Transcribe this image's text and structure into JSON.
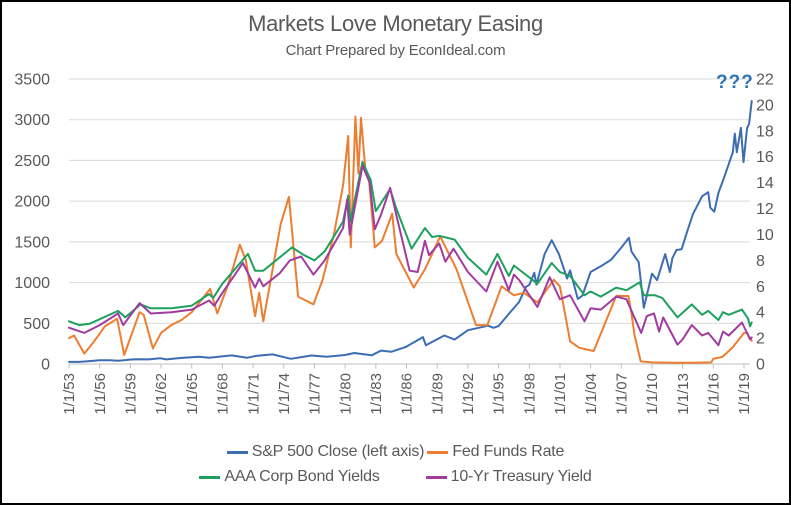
{
  "title": "Markets Love Monetary Easing",
  "subtitle": "Chart Prepared by EconIdeal.com",
  "annotation": {
    "text": "???",
    "color": "#2E74B6"
  },
  "text_color": "#595959",
  "gridline_color": "#D9D9D9",
  "axis_line_color": "#BFBFBF",
  "legend": {
    "items": [
      {
        "label": "S&P 500 Close (left axis)"
      },
      {
        "label": "Fed Funds Rate"
      },
      {
        "label": "AAA Corp Bond Yields"
      },
      {
        "label": "10-Yr Treasury Yield"
      }
    ]
  },
  "chart_data": {
    "type": "line",
    "title": "Markets Love Monetary Easing",
    "subtitle": "Chart Prepared by EconIdeal.com",
    "grid": "horizontal",
    "legend_position": "bottom",
    "x_axis": {
      "tick_labels": [
        "1/1/53",
        "1/1/56",
        "1/1/59",
        "1/1/62",
        "1/1/65",
        "1/1/68",
        "1/1/71",
        "1/1/74",
        "1/1/77",
        "1/1/80",
        "1/1/83",
        "1/1/86",
        "1/1/89",
        "1/1/92",
        "1/1/95",
        "1/1/98",
        "1/1/01",
        "1/1/04",
        "1/1/07",
        "1/1/10",
        "1/1/13",
        "1/1/16",
        "1/1/19"
      ],
      "tick_years": [
        1953,
        1956,
        1959,
        1962,
        1965,
        1968,
        1971,
        1974,
        1977,
        1980,
        1983,
        1986,
        1989,
        1992,
        1995,
        1998,
        2001,
        2004,
        2007,
        2010,
        2013,
        2016,
        2019
      ],
      "range_years": [
        1953,
        2019.75
      ]
    },
    "y_left": {
      "ticks": [
        0,
        500,
        1000,
        1500,
        2000,
        2500,
        3000,
        3500
      ],
      "range": [
        0,
        3500
      ],
      "applies_to": "S&P 500 Close"
    },
    "y_right": {
      "ticks": [
        0,
        2,
        4,
        6,
        8,
        10,
        12,
        14,
        16,
        18,
        20,
        22
      ],
      "range": [
        0,
        22
      ],
      "applies_to": "interest rates (%)"
    },
    "series": [
      {
        "id": "sp500",
        "name": "S&P 500 Close (left axis)",
        "axis": "left",
        "color": "#3C6DB2",
        "points": [
          [
            1953,
            26
          ],
          [
            1954,
            26
          ],
          [
            1955,
            36
          ],
          [
            1956,
            45
          ],
          [
            1957,
            46
          ],
          [
            1957.8,
            40
          ],
          [
            1958.8,
            52
          ],
          [
            1959.5,
            58
          ],
          [
            1960.8,
            56
          ],
          [
            1961.9,
            71
          ],
          [
            1962.5,
            56
          ],
          [
            1963.9,
            74
          ],
          [
            1965.7,
            90
          ],
          [
            1966.7,
            77
          ],
          [
            1968.9,
            106
          ],
          [
            1970.4,
            76
          ],
          [
            1971.3,
            100
          ],
          [
            1972.9,
            118
          ],
          [
            1974.7,
            64
          ],
          [
            1976.7,
            104
          ],
          [
            1978.2,
            89
          ],
          [
            1980,
            110
          ],
          [
            1980.9,
            135
          ],
          [
            1982.6,
            107
          ],
          [
            1983.5,
            165
          ],
          [
            1984.5,
            150
          ],
          [
            1985.9,
            207
          ],
          [
            1987.6,
            330
          ],
          [
            1987.9,
            230
          ],
          [
            1989.7,
            350
          ],
          [
            1990.7,
            300
          ],
          [
            1992,
            415
          ],
          [
            1994,
            470
          ],
          [
            1994.5,
            445
          ],
          [
            1995,
            465
          ],
          [
            1996,
            615
          ],
          [
            1997,
            760
          ],
          [
            1997.7,
            950
          ],
          [
            1998,
            970
          ],
          [
            1998.5,
            1120
          ],
          [
            1998.7,
            975
          ],
          [
            1999.5,
            1350
          ],
          [
            2000.2,
            1520
          ],
          [
            2000.9,
            1350
          ],
          [
            2001.7,
            1050
          ],
          [
            2002,
            1150
          ],
          [
            2002.75,
            800
          ],
          [
            2003.2,
            840
          ],
          [
            2004,
            1130
          ],
          [
            2005,
            1200
          ],
          [
            2006,
            1280
          ],
          [
            2007,
            1430
          ],
          [
            2007.75,
            1550
          ],
          [
            2008,
            1380
          ],
          [
            2008.7,
            1250
          ],
          [
            2009.2,
            690
          ],
          [
            2010,
            1110
          ],
          [
            2010.5,
            1030
          ],
          [
            2011.3,
            1350
          ],
          [
            2011.75,
            1130
          ],
          [
            2012,
            1300
          ],
          [
            2012.4,
            1400
          ],
          [
            2012.9,
            1410
          ],
          [
            2013.5,
            1650
          ],
          [
            2014,
            1840
          ],
          [
            2014.9,
            2060
          ],
          [
            2015.5,
            2110
          ],
          [
            2015.7,
            1920
          ],
          [
            2016.1,
            1870
          ],
          [
            2016.5,
            2100
          ],
          [
            2017,
            2270
          ],
          [
            2017.9,
            2600
          ],
          [
            2018.1,
            2830
          ],
          [
            2018.3,
            2600
          ],
          [
            2018.7,
            2900
          ],
          [
            2018.95,
            2480
          ],
          [
            2019.3,
            2900
          ],
          [
            2019.5,
            2950
          ],
          [
            2019.75,
            3230
          ]
        ]
      },
      {
        "id": "fed-funds",
        "name": "Fed Funds Rate",
        "axis": "right",
        "color": "#ED7D31",
        "points": [
          [
            1953,
            2.0
          ],
          [
            1953.5,
            2.2
          ],
          [
            1954.5,
            0.8
          ],
          [
            1955.5,
            1.8
          ],
          [
            1956.5,
            2.9
          ],
          [
            1957.7,
            3.5
          ],
          [
            1958.4,
            0.7
          ],
          [
            1959.9,
            4.0
          ],
          [
            1960.3,
            3.8
          ],
          [
            1961.2,
            1.2
          ],
          [
            1962,
            2.4
          ],
          [
            1963,
            3.0
          ],
          [
            1964,
            3.4
          ],
          [
            1965,
            4.0
          ],
          [
            1966.8,
            5.8
          ],
          [
            1967.5,
            3.9
          ],
          [
            1968.5,
            6.0
          ],
          [
            1969.7,
            9.2
          ],
          [
            1970.3,
            8.0
          ],
          [
            1971.2,
            3.7
          ],
          [
            1971.6,
            5.5
          ],
          [
            1972,
            3.3
          ],
          [
            1973.7,
            10.8
          ],
          [
            1974.5,
            12.9
          ],
          [
            1975.4,
            5.2
          ],
          [
            1976.9,
            4.6
          ],
          [
            1977.8,
            6.5
          ],
          [
            1978.9,
            10.0
          ],
          [
            1979.8,
            13.8
          ],
          [
            1980.3,
            17.6
          ],
          [
            1980.55,
            9.0
          ],
          [
            1981,
            19.1
          ],
          [
            1981.3,
            14.7
          ],
          [
            1981.55,
            19.0
          ],
          [
            1982,
            14.8
          ],
          [
            1982.3,
            14.5
          ],
          [
            1982.9,
            9.0
          ],
          [
            1983.6,
            9.5
          ],
          [
            1984.6,
            11.6
          ],
          [
            1985,
            8.5
          ],
          [
            1986.7,
            5.9
          ],
          [
            1987.8,
            7.3
          ],
          [
            1989.3,
            9.85
          ],
          [
            1990.9,
            7.3
          ],
          [
            1992.8,
            3.0
          ],
          [
            1993.9,
            3.0
          ],
          [
            1995.3,
            6.0
          ],
          [
            1996.5,
            5.3
          ],
          [
            1997.5,
            5.5
          ],
          [
            1998.8,
            4.75
          ],
          [
            2000.4,
            6.5
          ],
          [
            2001,
            6.0
          ],
          [
            2002,
            1.75
          ],
          [
            2002.9,
            1.25
          ],
          [
            2004.3,
            1.0
          ],
          [
            2006.5,
            5.25
          ],
          [
            2007.7,
            5.25
          ],
          [
            2008,
            3.9
          ],
          [
            2008.3,
            2.2
          ],
          [
            2008.9,
            0.2
          ],
          [
            2010,
            0.12
          ],
          [
            2012,
            0.1
          ],
          [
            2014,
            0.1
          ],
          [
            2015.8,
            0.12
          ],
          [
            2016,
            0.4
          ],
          [
            2016.9,
            0.55
          ],
          [
            2017.5,
            1.0
          ],
          [
            2017.9,
            1.3
          ],
          [
            2018.3,
            1.7
          ],
          [
            2018.8,
            2.2
          ],
          [
            2019,
            2.4
          ],
          [
            2019.3,
            2.4
          ],
          [
            2019.5,
            2.1
          ],
          [
            2019.75,
            1.8
          ]
        ]
      },
      {
        "id": "aaa-corp",
        "name": "AAA Corp Bond Yields",
        "axis": "right",
        "color": "#1EA05F",
        "points": [
          [
            1953,
            3.3
          ],
          [
            1954,
            3.0
          ],
          [
            1955,
            3.1
          ],
          [
            1957.8,
            4.1
          ],
          [
            1958.5,
            3.6
          ],
          [
            1960,
            4.6
          ],
          [
            1961,
            4.3
          ],
          [
            1963,
            4.3
          ],
          [
            1965,
            4.5
          ],
          [
            1966.7,
            5.4
          ],
          [
            1967.1,
            5.1
          ],
          [
            1968,
            6.2
          ],
          [
            1970.5,
            8.5
          ],
          [
            1971.2,
            7.2
          ],
          [
            1972,
            7.2
          ],
          [
            1974.8,
            9.0
          ],
          [
            1976,
            8.4
          ],
          [
            1977,
            8.0
          ],
          [
            1978,
            8.7
          ],
          [
            1979.8,
            11.0
          ],
          [
            1980.3,
            13.0
          ],
          [
            1980.5,
            11.0
          ],
          [
            1981.7,
            15.6
          ],
          [
            1982.5,
            14.2
          ],
          [
            1983,
            11.8
          ],
          [
            1984.4,
            13.5
          ],
          [
            1985,
            12.0
          ],
          [
            1986.5,
            8.9
          ],
          [
            1987.8,
            10.5
          ],
          [
            1988.5,
            9.8
          ],
          [
            1989.2,
            9.9
          ],
          [
            1990.7,
            9.6
          ],
          [
            1992,
            8.2
          ],
          [
            1993.8,
            6.9
          ],
          [
            1994.9,
            8.5
          ],
          [
            1996,
            6.8
          ],
          [
            1996.5,
            7.6
          ],
          [
            1998.8,
            6.2
          ],
          [
            2000.2,
            7.8
          ],
          [
            2001,
            7.1
          ],
          [
            2002,
            6.8
          ],
          [
            2003.4,
            5.3
          ],
          [
            2004,
            5.6
          ],
          [
            2005,
            5.2
          ],
          [
            2006.5,
            5.9
          ],
          [
            2007.5,
            5.7
          ],
          [
            2008.8,
            6.3
          ],
          [
            2009.2,
            5.3
          ],
          [
            2010.3,
            5.3
          ],
          [
            2011,
            5.1
          ],
          [
            2012.5,
            3.6
          ],
          [
            2013.9,
            4.6
          ],
          [
            2014.9,
            3.8
          ],
          [
            2015.5,
            4.1
          ],
          [
            2016.5,
            3.4
          ],
          [
            2016.95,
            4.0
          ],
          [
            2017.5,
            3.8
          ],
          [
            2018.8,
            4.2
          ],
          [
            2019.4,
            3.5
          ],
          [
            2019.6,
            2.9
          ],
          [
            2019.75,
            3.2
          ]
        ]
      },
      {
        "id": "treasury-10yr",
        "name": "10-Yr Treasury Yield",
        "axis": "right",
        "color": "#A03CA0",
        "points": [
          [
            1953,
            2.8
          ],
          [
            1954.5,
            2.4
          ],
          [
            1956,
            3.0
          ],
          [
            1957.8,
            3.9
          ],
          [
            1958.3,
            3.0
          ],
          [
            1959.9,
            4.7
          ],
          [
            1961,
            3.9
          ],
          [
            1963,
            4.0
          ],
          [
            1965,
            4.2
          ],
          [
            1966.7,
            4.9
          ],
          [
            1967.2,
            4.5
          ],
          [
            1968,
            5.5
          ],
          [
            1970,
            7.8
          ],
          [
            1971.2,
            5.9
          ],
          [
            1971.6,
            6.6
          ],
          [
            1972,
            6.0
          ],
          [
            1973.6,
            7.0
          ],
          [
            1974.6,
            8.0
          ],
          [
            1975.7,
            8.3
          ],
          [
            1976.9,
            6.9
          ],
          [
            1978,
            8.0
          ],
          [
            1979.8,
            10.5
          ],
          [
            1980.2,
            12.7
          ],
          [
            1980.45,
            10.0
          ],
          [
            1981.7,
            15.3
          ],
          [
            1982.4,
            14.0
          ],
          [
            1982.9,
            10.4
          ],
          [
            1983.5,
            11.5
          ],
          [
            1984.4,
            13.6
          ],
          [
            1985,
            11.5
          ],
          [
            1986.3,
            7.2
          ],
          [
            1987.1,
            7.1
          ],
          [
            1987.8,
            9.5
          ],
          [
            1988.2,
            8.4
          ],
          [
            1989.2,
            9.3
          ],
          [
            1989.8,
            7.9
          ],
          [
            1990.6,
            8.9
          ],
          [
            1992,
            7.1
          ],
          [
            1993.8,
            5.6
          ],
          [
            1994.9,
            7.9
          ],
          [
            1996,
            5.7
          ],
          [
            1996.5,
            6.9
          ],
          [
            1997,
            6.5
          ],
          [
            1998.8,
            4.4
          ],
          [
            2000,
            6.7
          ],
          [
            2001,
            5.0
          ],
          [
            2002,
            5.3
          ],
          [
            2003.4,
            3.3
          ],
          [
            2004,
            4.3
          ],
          [
            2005,
            4.2
          ],
          [
            2006.5,
            5.2
          ],
          [
            2007.5,
            5.0
          ],
          [
            2008.95,
            2.4
          ],
          [
            2009.5,
            3.7
          ],
          [
            2010.2,
            3.9
          ],
          [
            2010.7,
            2.5
          ],
          [
            2011.1,
            3.6
          ],
          [
            2012.5,
            1.5
          ],
          [
            2013,
            1.9
          ],
          [
            2013.9,
            3.0
          ],
          [
            2014.9,
            2.2
          ],
          [
            2015.5,
            2.4
          ],
          [
            2016.5,
            1.45
          ],
          [
            2016.95,
            2.5
          ],
          [
            2017.5,
            2.2
          ],
          [
            2018.8,
            3.2
          ],
          [
            2019.6,
            1.9
          ],
          [
            2019.75,
            2.05
          ]
        ]
      }
    ]
  }
}
